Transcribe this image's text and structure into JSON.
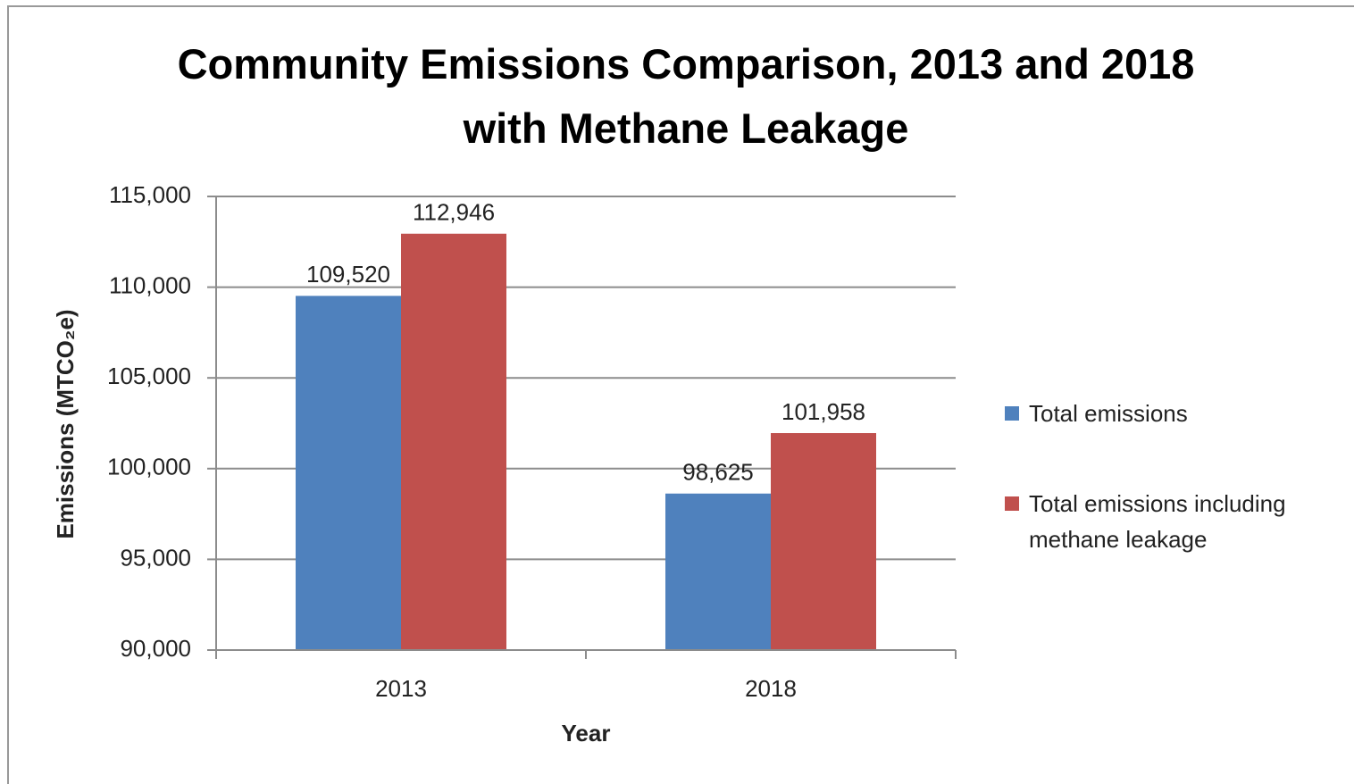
{
  "chart_data": {
    "type": "bar",
    "title": "Community Emissions Comparison, 2013 and 2018 with Methane Leakage",
    "x_label": "Year",
    "y_label": "Emissions  (MTCO₂e)",
    "categories": [
      "2013",
      "2018"
    ],
    "series": [
      {
        "name": "Total emissions",
        "color": "#4f81bd",
        "values": [
          109520,
          98625
        ],
        "value_labels": [
          "109,520",
          "98,625"
        ]
      },
      {
        "name": "Total emissions including methane leakage",
        "color": "#c0504d",
        "values": [
          112946,
          101958
        ],
        "value_labels": [
          "112,946",
          "101,958"
        ]
      }
    ],
    "ylim": [
      90000,
      115000
    ],
    "yticks": [
      {
        "value": 90000,
        "label": "90,000"
      },
      {
        "value": 95000,
        "label": "95,000"
      },
      {
        "value": 100000,
        "label": "100,000"
      },
      {
        "value": 105000,
        "label": "105,000"
      },
      {
        "value": 110000,
        "label": "110,000"
      },
      {
        "value": 115000,
        "label": "115,000"
      }
    ],
    "grid": true,
    "legend": "right"
  }
}
